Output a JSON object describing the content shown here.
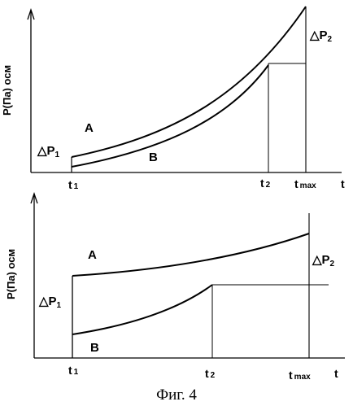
{
  "figure": {
    "caption": "Фиг. 4",
    "top_panel": {
      "y_axis_label": "Р(Па) осм",
      "x_axis_label": "t",
      "curve_a_label": "A",
      "curve_b_label": "B",
      "delta_p1": {
        "symbol": "△P",
        "sub": "1"
      },
      "delta_p2": {
        "symbol": "△P",
        "sub": "2"
      },
      "tick_t1": {
        "base": "t",
        "sub": "1"
      },
      "tick_t2": {
        "base": "t",
        "sub": "2"
      },
      "tick_tmax": {
        "base": "t",
        "sub": "max"
      }
    },
    "bottom_panel": {
      "y_axis_label": "Р(Па) осм",
      "x_axis_label": "t",
      "curve_a_label": "A",
      "curve_b_label": "B",
      "delta_p1": {
        "symbol": "△P",
        "sub": "1"
      },
      "delta_p2": {
        "symbol": "△P",
        "sub": "2"
      },
      "tick_t1": {
        "base": "t",
        "sub": "1"
      },
      "tick_t2": {
        "base": "t",
        "sub": "2"
      },
      "tick_tmax": {
        "base": "t",
        "sub": "max"
      }
    }
  }
}
